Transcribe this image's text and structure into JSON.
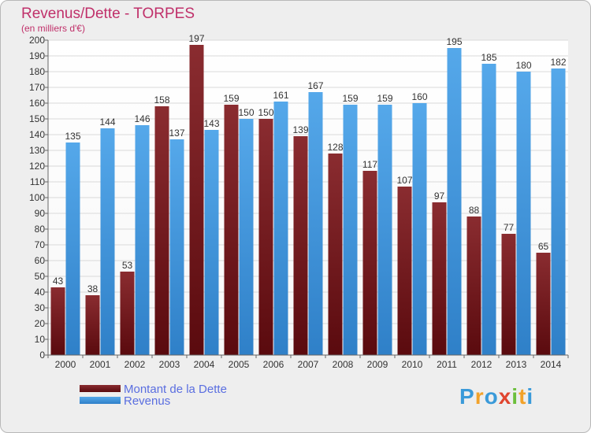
{
  "chart_data": {
    "type": "bar",
    "title": "Revenus/Dette - TORPES",
    "subtitle": "(en milliers d'€)",
    "categories": [
      "2000",
      "2001",
      "2002",
      "2003",
      "2004",
      "2005",
      "2006",
      "2007",
      "2008",
      "2009",
      "2010",
      "2011",
      "2012",
      "2013",
      "2014"
    ],
    "series": [
      {
        "name": "Montant de la Dette",
        "color": "#7a1e22",
        "values": [
          43,
          38,
          53,
          158,
          197,
          159,
          150,
          139,
          128,
          117,
          107,
          97,
          88,
          77,
          65
        ]
      },
      {
        "name": "Revenus",
        "color": "#3d8fd6",
        "values": [
          135,
          144,
          146,
          137,
          143,
          150,
          161,
          167,
          159,
          159,
          160,
          195,
          185,
          180,
          182
        ]
      }
    ],
    "ylim": [
      0,
      200
    ],
    "ytick_step": 10,
    "grid": true,
    "legend_position": "bottom-left",
    "xlabel": "",
    "ylabel": ""
  },
  "logo": {
    "text": "Proxiti",
    "letters": [
      {
        "ch": "P",
        "color": "#3a9ad9"
      },
      {
        "ch": "r",
        "color": "#f2a22a"
      },
      {
        "ch": "o",
        "color": "#3a9ad9"
      },
      {
        "ch": "x",
        "color": "#e0452f"
      },
      {
        "ch": "i",
        "color": "#6cbf3c"
      },
      {
        "ch": "t",
        "color": "#f2a22a"
      },
      {
        "ch": "i",
        "color": "#3a9ad9"
      }
    ]
  }
}
